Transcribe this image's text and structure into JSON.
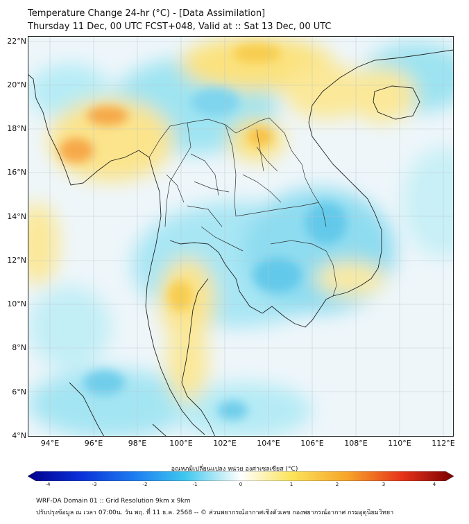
{
  "title": {
    "line1": "Temperature Change 24-hr (°C) - [Data Assimilation]",
    "line2": "Thursday 11 Dec, 00 UTC FCST+048, Valid at :: Sat 13 Dec, 00 UTC"
  },
  "map": {
    "lat_ticks": [
      "22°N",
      "20°N",
      "18°N",
      "16°N",
      "14°N",
      "12°N",
      "10°N",
      "8°N",
      "6°N",
      "4°N"
    ],
    "lon_ticks": [
      "94°E",
      "96°E",
      "98°E",
      "100°E",
      "102°E",
      "104°E",
      "106°E",
      "108°E",
      "110°E",
      "112°E"
    ],
    "lat_range": [
      4,
      22.3
    ],
    "lon_range": [
      93,
      112.5
    ]
  },
  "colorbar": {
    "label": "อุณหภูมิเปลี่ยนแปลง หน่วย องศาเซลเซียส (°C)",
    "ticks": [
      "-4",
      "-3",
      "-2",
      "-1",
      "0",
      "1",
      "2",
      "3",
      "4"
    ],
    "range": [
      -4,
      4
    ]
  },
  "footer": {
    "line1": "WRF-DA Domain 01 :: Grid Resolution 9km x 9km",
    "line2": "ปรับปรุงข้อมูล ณ เวลา 07:00น. วัน พฤ. ที่ 11 ธ.ค. 2568 -- © ส่วนพยากรณ์อากาศเชิงตัวเลข กองพยากรณ์อากาศ กรมอุตุนิยมวิทยา"
  }
}
